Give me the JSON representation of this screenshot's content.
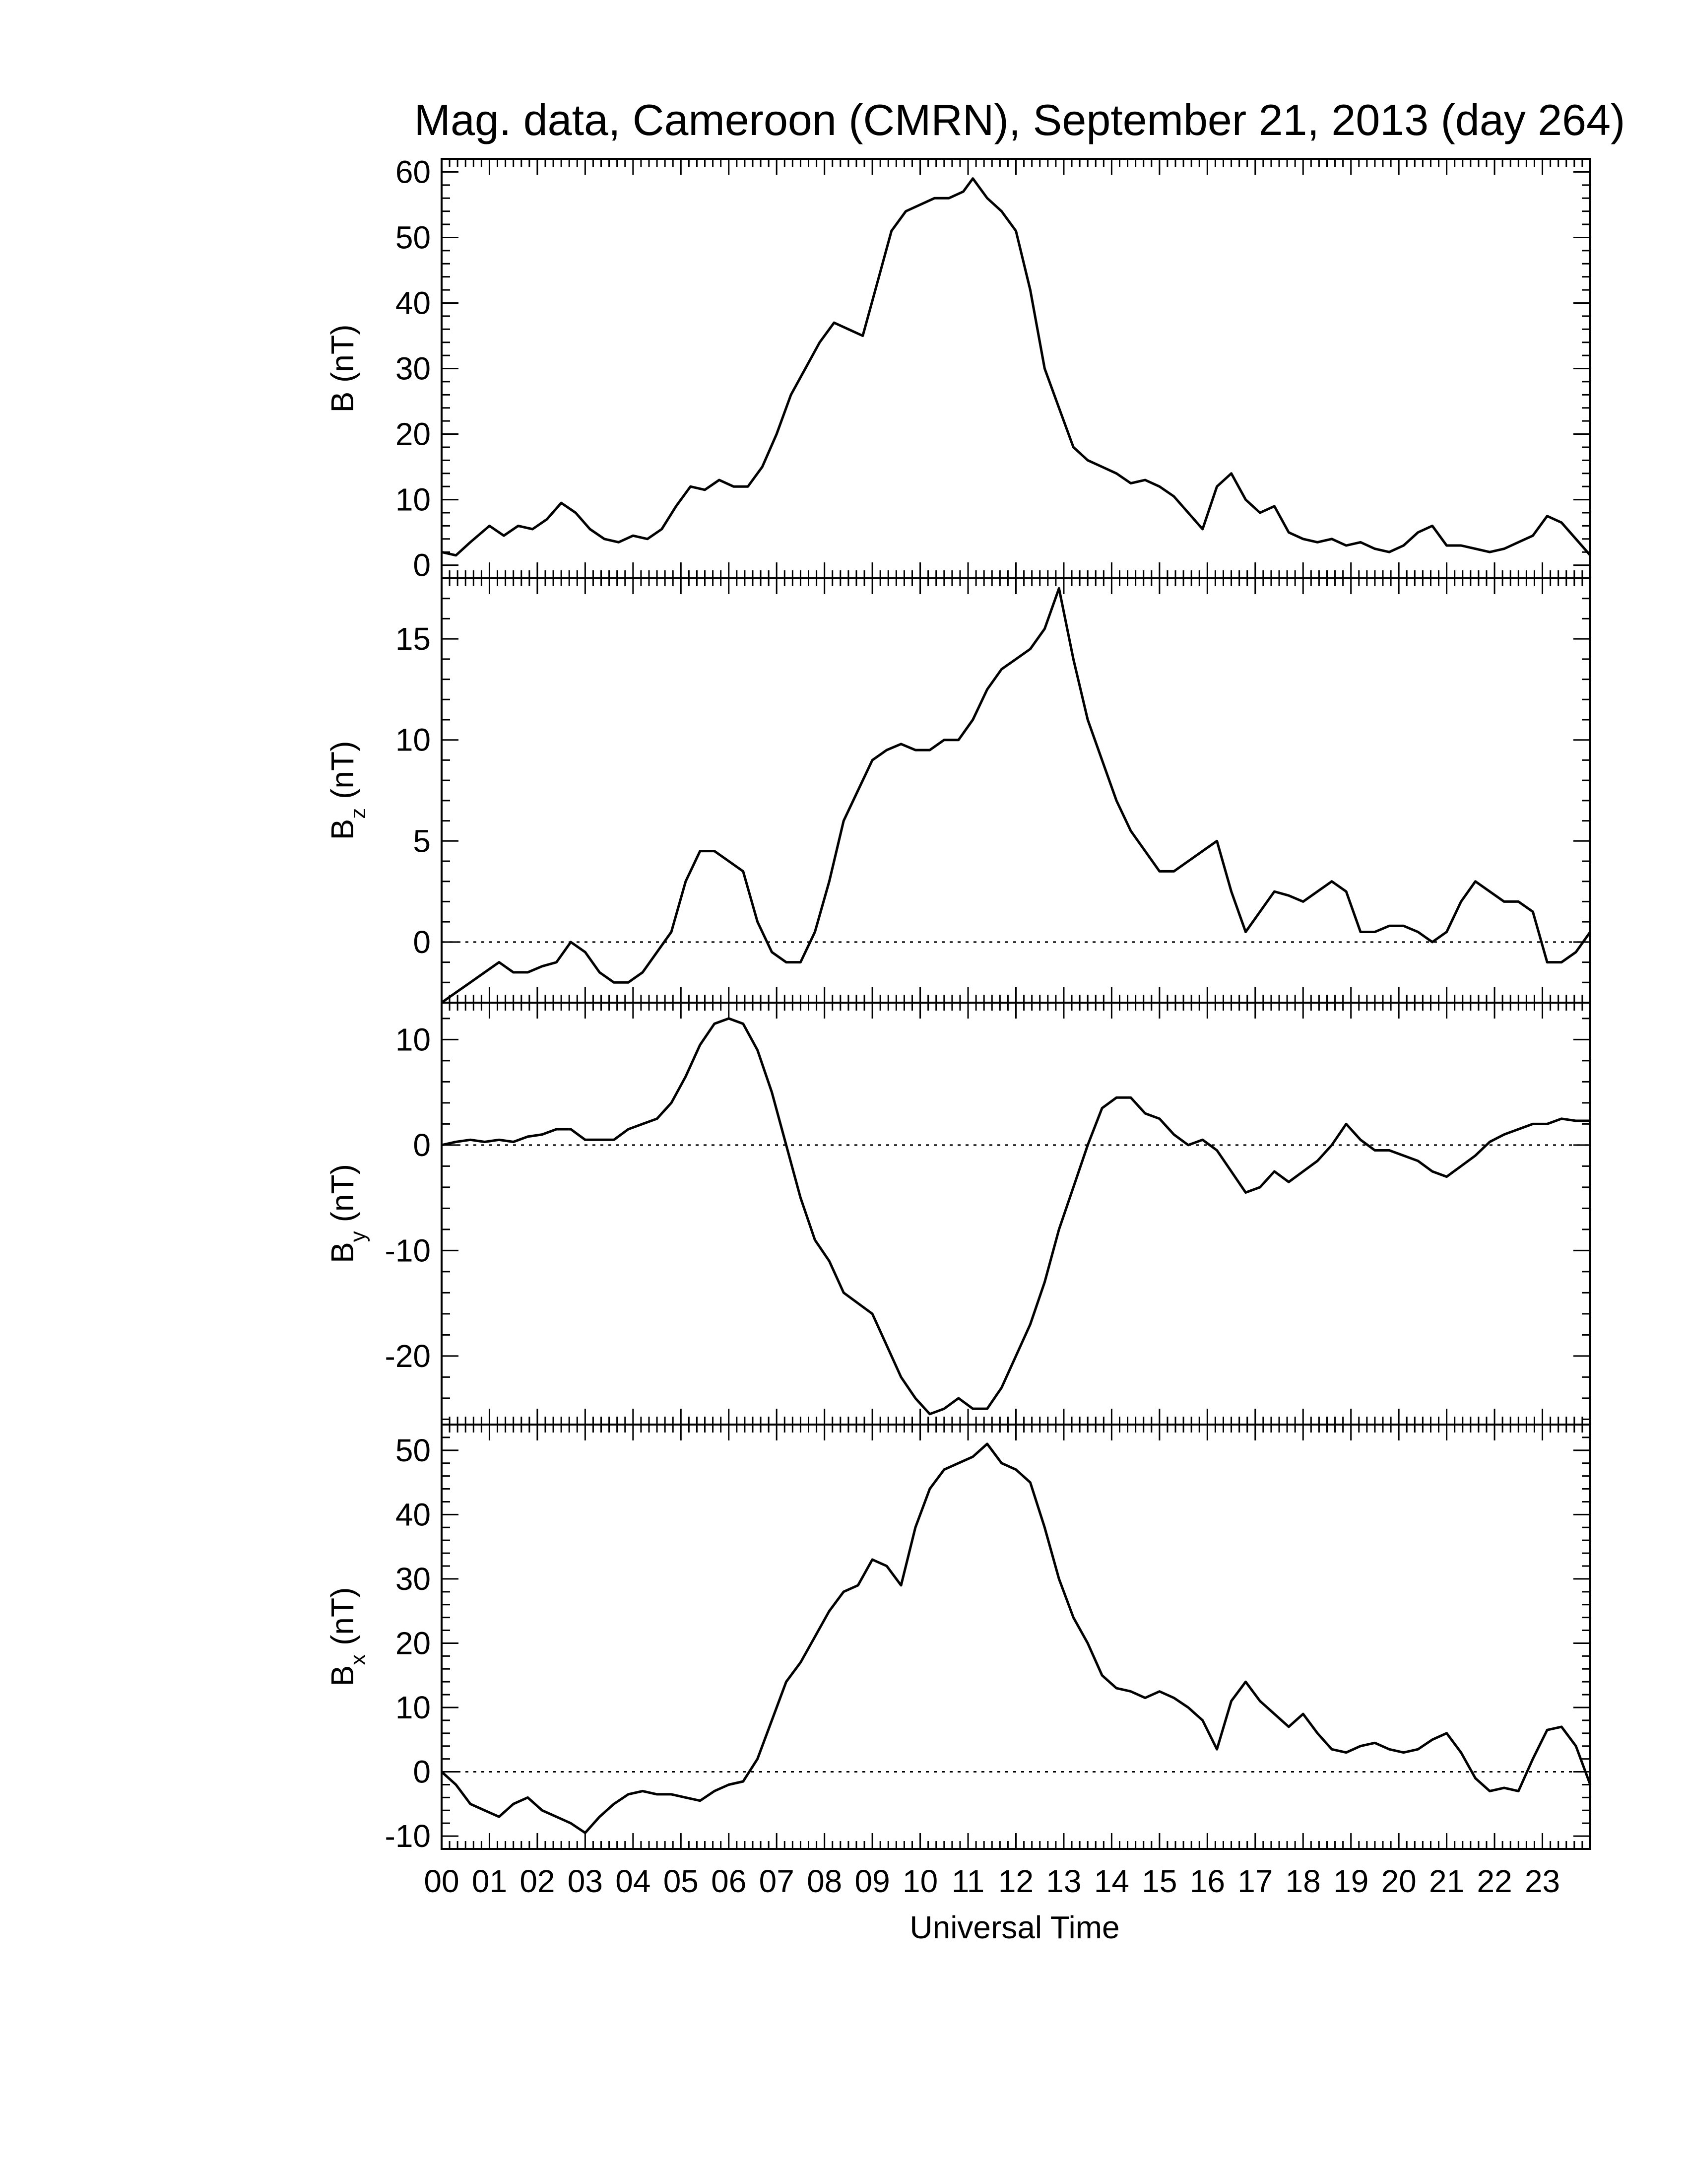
{
  "chart_data": {
    "type": "line",
    "title": "Mag. data, Cameroon (CMRN), September 21, 2013 (day 264)",
    "xlabel": "Universal Time",
    "x_unit": "hours UT",
    "xlim": [
      0,
      24
    ],
    "x_tick_labels": [
      "00",
      "01",
      "02",
      "03",
      "04",
      "05",
      "06",
      "07",
      "08",
      "09",
      "10",
      "11",
      "12",
      "13",
      "14",
      "15",
      "16",
      "17",
      "18",
      "19",
      "20",
      "21",
      "22",
      "23"
    ],
    "line_color": "#000000",
    "panels": [
      {
        "ylabel": "B (nT)",
        "ylabel_main": "B",
        "ylabel_sub": "",
        "ylabel_unit": " (nT)",
        "ylim": [
          -2,
          62
        ],
        "yticks": [
          0,
          10,
          20,
          30,
          40,
          50,
          60
        ],
        "ytick_labels": [
          "0",
          "10",
          "20",
          "30",
          "40",
          "50",
          "60"
        ],
        "zero_line": false,
        "x": [
          0,
          0.3,
          0.6,
          1,
          1.3,
          1.6,
          1.9,
          2.2,
          2.5,
          2.8,
          3.1,
          3.4,
          3.7,
          4,
          4.3,
          4.6,
          4.9,
          5.2,
          5.5,
          5.8,
          6.1,
          6.4,
          6.7,
          7,
          7.3,
          7.6,
          7.9,
          8.2,
          8.5,
          8.8,
          9.1,
          9.4,
          9.7,
          10,
          10.3,
          10.6,
          10.9,
          11.1,
          11.4,
          11.7,
          12,
          12.3,
          12.6,
          12.9,
          13.2,
          13.5,
          13.8,
          14.1,
          14.4,
          14.7,
          15,
          15.3,
          15.6,
          15.9,
          16.2,
          16.5,
          16.8,
          17.1,
          17.4,
          17.7,
          18,
          18.3,
          18.6,
          18.9,
          19.2,
          19.5,
          19.8,
          20.1,
          20.4,
          20.7,
          21,
          21.3,
          21.6,
          21.9,
          22.2,
          22.5,
          22.8,
          23.1,
          23.4,
          23.7,
          24
        ],
        "y": [
          2,
          1.5,
          3.5,
          6,
          4.5,
          6,
          5.5,
          7,
          9.5,
          8,
          5.5,
          4,
          3.5,
          4.5,
          4,
          5.5,
          9,
          12,
          11.5,
          13,
          12,
          12,
          15,
          20,
          26,
          30,
          34,
          37,
          36,
          35,
          43,
          51,
          54,
          55,
          56,
          56,
          57,
          59,
          56,
          54,
          51,
          42,
          30,
          24,
          18,
          16,
          15,
          14,
          12.5,
          13,
          12,
          10.5,
          8,
          5.5,
          12,
          14,
          10,
          8,
          9,
          5,
          4,
          3.5,
          4,
          3,
          3.5,
          2.5,
          2,
          3,
          5,
          6,
          3,
          3,
          2.5,
          2,
          2.5,
          3.5,
          4.5,
          7.5,
          6.5,
          4,
          1.5
        ]
      },
      {
        "ylabel": "Bz (nT)",
        "ylabel_main": "B",
        "ylabel_sub": "z",
        "ylabel_unit": " (nT)",
        "ylim": [
          -3,
          18
        ],
        "yticks": [
          0,
          5,
          10,
          15
        ],
        "ytick_labels": [
          "0",
          "5",
          "10",
          "15"
        ],
        "zero_line": true,
        "x": [
          0,
          0.3,
          0.6,
          0.9,
          1.2,
          1.5,
          1.8,
          2.1,
          2.4,
          2.7,
          3,
          3.3,
          3.6,
          3.9,
          4.2,
          4.5,
          4.8,
          5.1,
          5.4,
          5.7,
          6,
          6.3,
          6.6,
          6.9,
          7.2,
          7.5,
          7.8,
          8.1,
          8.4,
          8.7,
          9,
          9.3,
          9.6,
          9.9,
          10.2,
          10.5,
          10.8,
          11.1,
          11.4,
          11.7,
          12,
          12.3,
          12.6,
          12.9,
          13.2,
          13.5,
          13.8,
          14.1,
          14.4,
          14.7,
          15,
          15.3,
          15.6,
          15.9,
          16.2,
          16.5,
          16.8,
          17.1,
          17.4,
          17.7,
          18,
          18.3,
          18.6,
          18.9,
          19.2,
          19.5,
          19.8,
          20.1,
          20.4,
          20.7,
          21,
          21.3,
          21.6,
          21.9,
          22.2,
          22.5,
          22.8,
          23.1,
          23.4,
          23.7,
          24
        ],
        "y": [
          -3,
          -2.5,
          -2,
          -1.5,
          -1,
          -1.5,
          -1.5,
          -1.2,
          -1,
          0,
          -0.5,
          -1.5,
          -2,
          -2,
          -1.5,
          -0.5,
          0.5,
          3,
          4.5,
          4.5,
          4,
          3.5,
          1,
          -0.5,
          -1,
          -1,
          0.5,
          3,
          6,
          7.5,
          9,
          9.5,
          9.8,
          9.5,
          9.5,
          10,
          10,
          11,
          12.5,
          13.5,
          14,
          14.5,
          15.5,
          17.5,
          14,
          11,
          9,
          7,
          5.5,
          4.5,
          3.5,
          3.5,
          4,
          4.5,
          5,
          2.5,
          0.5,
          1.5,
          2.5,
          2.3,
          2,
          2.5,
          3,
          2.5,
          0.5,
          0.5,
          0.8,
          0.8,
          0.5,
          0,
          0.5,
          2,
          3,
          2.5,
          2,
          2,
          1.5,
          -1,
          -1,
          -0.5,
          0.5
        ]
      },
      {
        "ylabel": "By (nT)",
        "ylabel_main": "B",
        "ylabel_sub": "y",
        "ylabel_unit": " (nT)",
        "ylim": [
          -26.5,
          13.5
        ],
        "yticks": [
          -20,
          -10,
          0,
          10
        ],
        "ytick_labels": [
          "-20",
          "-10",
          "0",
          "10"
        ],
        "zero_line": true,
        "x": [
          0,
          0.3,
          0.6,
          0.9,
          1.2,
          1.5,
          1.8,
          2.1,
          2.4,
          2.7,
          3,
          3.3,
          3.6,
          3.9,
          4.2,
          4.5,
          4.8,
          5.1,
          5.4,
          5.7,
          6,
          6.3,
          6.6,
          6.9,
          7.2,
          7.5,
          7.8,
          8.1,
          8.4,
          8.7,
          9,
          9.3,
          9.6,
          9.9,
          10.2,
          10.5,
          10.8,
          11.1,
          11.4,
          11.7,
          12,
          12.3,
          12.6,
          12.9,
          13.2,
          13.5,
          13.8,
          14.1,
          14.4,
          14.7,
          15,
          15.3,
          15.6,
          15.9,
          16.2,
          16.5,
          16.8,
          17.1,
          17.4,
          17.7,
          18,
          18.3,
          18.6,
          18.9,
          19.2,
          19.5,
          19.8,
          20.1,
          20.4,
          20.7,
          21,
          21.3,
          21.6,
          21.9,
          22.2,
          22.5,
          22.8,
          23.1,
          23.4,
          23.7,
          24
        ],
        "y": [
          0,
          0.3,
          0.5,
          0.3,
          0.5,
          0.3,
          0.8,
          1,
          1.5,
          1.5,
          0.5,
          0.5,
          0.5,
          1.5,
          2,
          2.5,
          4,
          6.5,
          9.5,
          11.5,
          12,
          11.5,
          9,
          5,
          0,
          -5,
          -9,
          -11,
          -14,
          -15,
          -16,
          -19,
          -22,
          -24,
          -25.5,
          -25,
          -24,
          -25,
          -25,
          -23,
          -20,
          -17,
          -13,
          -8,
          -4,
          0,
          3.5,
          4.5,
          4.5,
          3,
          2.5,
          1,
          0,
          0.5,
          -0.5,
          -2.5,
          -4.5,
          -4,
          -2.5,
          -3.5,
          -2.5,
          -1.5,
          0,
          2,
          0.5,
          -0.5,
          -0.5,
          -1,
          -1.5,
          -2.5,
          -3,
          -2,
          -1,
          0.3,
          1,
          1.5,
          2,
          2,
          2.5,
          2.3,
          2.3
        ]
      },
      {
        "ylabel": "Bx (nT)",
        "ylabel_main": "B",
        "ylabel_sub": "x",
        "ylabel_unit": " (nT)",
        "ylim": [
          -12,
          54
        ],
        "yticks": [
          -10,
          0,
          10,
          20,
          30,
          40,
          50
        ],
        "ytick_labels": [
          "-10",
          "0",
          "10",
          "20",
          "30",
          "40",
          "50"
        ],
        "zero_line": true,
        "x": [
          0,
          0.3,
          0.6,
          0.9,
          1.2,
          1.5,
          1.8,
          2.1,
          2.4,
          2.7,
          3,
          3.3,
          3.6,
          3.9,
          4.2,
          4.5,
          4.8,
          5.1,
          5.4,
          5.7,
          6,
          6.3,
          6.6,
          6.9,
          7.2,
          7.5,
          7.8,
          8.1,
          8.4,
          8.7,
          9,
          9.3,
          9.6,
          9.9,
          10.2,
          10.5,
          10.8,
          11.1,
          11.4,
          11.7,
          12,
          12.3,
          12.6,
          12.9,
          13.2,
          13.5,
          13.8,
          14.1,
          14.4,
          14.7,
          15,
          15.3,
          15.6,
          15.9,
          16.2,
          16.5,
          16.8,
          17.1,
          17.4,
          17.7,
          18,
          18.3,
          18.6,
          18.9,
          19.2,
          19.5,
          19.8,
          20.1,
          20.4,
          20.7,
          21,
          21.3,
          21.6,
          21.9,
          22.2,
          22.5,
          22.8,
          23.1,
          23.4,
          23.7,
          24
        ],
        "y": [
          0,
          -2,
          -5,
          -6,
          -7,
          -5,
          -4,
          -6,
          -7,
          -8,
          -9.5,
          -7,
          -5,
          -3.5,
          -3,
          -3.5,
          -3.5,
          -4,
          -4.5,
          -3,
          -2,
          -1.5,
          2,
          8,
          14,
          17,
          21,
          25,
          28,
          29,
          33,
          32,
          29,
          38,
          44,
          47,
          48,
          49,
          51,
          48,
          47,
          45,
          38,
          30,
          24,
          20,
          15,
          13,
          12.5,
          11.5,
          12.5,
          11.5,
          10,
          8,
          3.5,
          11,
          14,
          11,
          9,
          7,
          9,
          6,
          3.5,
          3,
          4,
          4.5,
          3.5,
          3,
          3.5,
          5,
          6,
          3,
          -1,
          -3,
          -2.5,
          -3,
          2,
          6.5,
          7,
          4,
          -2
        ]
      }
    ]
  }
}
